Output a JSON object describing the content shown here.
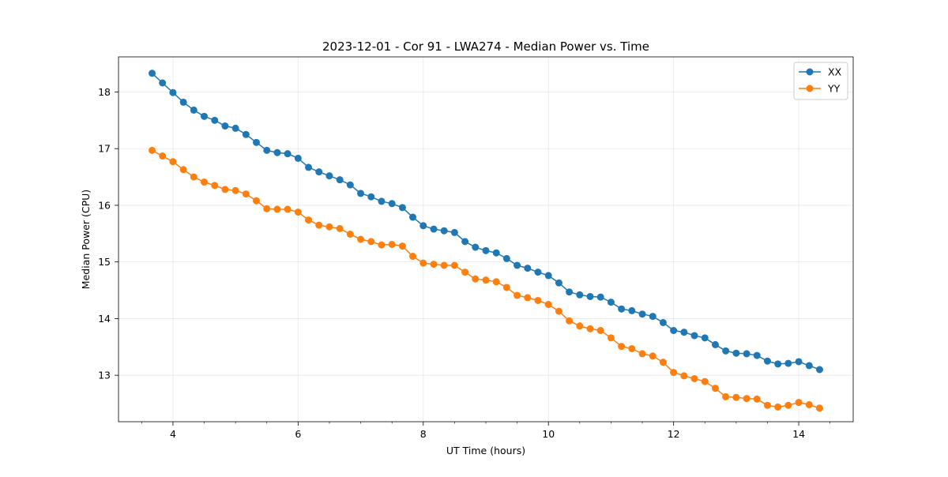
{
  "chart_data": {
    "type": "line",
    "title": "2023-12-01 - Cor 91 - LWA274 - Median Power vs. Time",
    "xlabel": "UT Time (hours)",
    "ylabel": "Median Power (CPU)",
    "xlim": [
      3.13,
      14.87
    ],
    "ylim": [
      12.18,
      18.62
    ],
    "xticks": [
      4,
      6,
      8,
      10,
      12,
      14
    ],
    "yticks": [
      13,
      14,
      15,
      16,
      17,
      18
    ],
    "grid": true,
    "legend": "top-right",
    "x": [
      3.667,
      3.833,
      4.0,
      4.167,
      4.333,
      4.5,
      4.667,
      4.833,
      5.0,
      5.167,
      5.333,
      5.5,
      5.667,
      5.833,
      6.0,
      6.167,
      6.333,
      6.5,
      6.667,
      6.833,
      7.0,
      7.167,
      7.333,
      7.5,
      7.667,
      7.833,
      8.0,
      8.167,
      8.333,
      8.5,
      8.667,
      8.833,
      9.0,
      9.167,
      9.333,
      9.5,
      9.667,
      9.833,
      10.0,
      10.167,
      10.333,
      10.5,
      10.667,
      10.833,
      11.0,
      11.167,
      11.333,
      11.5,
      11.667,
      11.833,
      12.0,
      12.167,
      12.333,
      12.5,
      12.667,
      12.833,
      13.0,
      13.167,
      13.333,
      13.5,
      13.667,
      13.833,
      14.0,
      14.167,
      14.333
    ],
    "series": [
      {
        "name": "XX",
        "color": "#1f77b4",
        "values": [
          18.33,
          18.16,
          17.99,
          17.82,
          17.68,
          17.57,
          17.5,
          17.4,
          17.36,
          17.25,
          17.11,
          16.97,
          16.93,
          16.91,
          16.83,
          16.67,
          16.59,
          16.52,
          16.45,
          16.36,
          16.21,
          16.15,
          16.07,
          16.03,
          15.96,
          15.79,
          15.64,
          15.58,
          15.55,
          15.52,
          15.36,
          15.26,
          15.2,
          15.16,
          15.06,
          14.94,
          14.89,
          14.82,
          14.76,
          14.63,
          14.47,
          14.42,
          14.39,
          14.38,
          14.29,
          14.17,
          14.14,
          14.08,
          14.04,
          13.93,
          13.79,
          13.76,
          13.7,
          13.66,
          13.54,
          13.43,
          13.39,
          13.38,
          13.35,
          13.25,
          13.2,
          13.21,
          13.24,
          13.17,
          13.1
        ]
      },
      {
        "name": "YY",
        "color": "#ff7f0e",
        "values": [
          16.97,
          16.87,
          16.77,
          16.63,
          16.5,
          16.41,
          16.35,
          16.28,
          16.26,
          16.2,
          16.08,
          15.94,
          15.93,
          15.93,
          15.88,
          15.74,
          15.65,
          15.62,
          15.59,
          15.49,
          15.4,
          15.36,
          15.3,
          15.31,
          15.28,
          15.1,
          14.98,
          14.96,
          14.94,
          14.94,
          14.82,
          14.7,
          14.68,
          14.65,
          14.55,
          14.41,
          14.37,
          14.32,
          14.25,
          14.13,
          13.96,
          13.87,
          13.82,
          13.79,
          13.66,
          13.51,
          13.47,
          13.38,
          13.34,
          13.23,
          13.05,
          12.99,
          12.94,
          12.89,
          12.77,
          12.62,
          12.61,
          12.59,
          12.58,
          12.47,
          12.44,
          12.47,
          12.52,
          12.48,
          12.42
        ]
      }
    ]
  }
}
